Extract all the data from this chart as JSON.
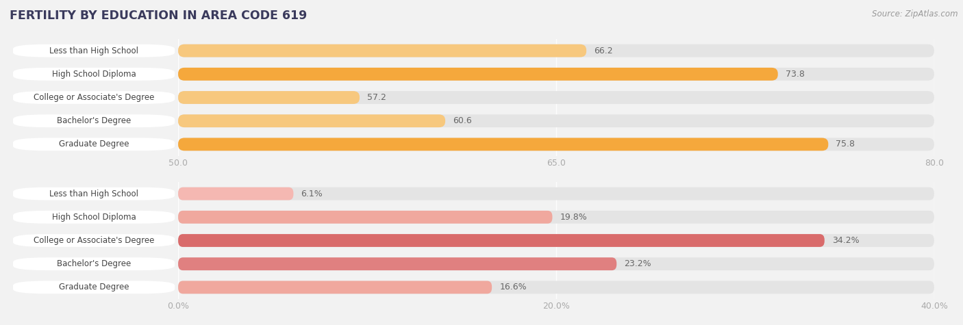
{
  "title": "FERTILITY BY EDUCATION IN AREA CODE 619",
  "source": "Source: ZipAtlas.com",
  "top_group": {
    "categories": [
      "Less than High School",
      "High School Diploma",
      "College or Associate's Degree",
      "Bachelor's Degree",
      "Graduate Degree"
    ],
    "values": [
      66.2,
      73.8,
      57.2,
      60.6,
      75.8
    ],
    "xmin": 50.0,
    "xmax": 80.0,
    "xticks": [
      50.0,
      65.0,
      80.0
    ],
    "bar_colors": [
      "#f7c87e",
      "#f5a83c",
      "#f7c87e",
      "#f7c87e",
      "#f5a83c"
    ],
    "label_suffix": ""
  },
  "bottom_group": {
    "categories": [
      "Less than High School",
      "High School Diploma",
      "College or Associate's Degree",
      "Bachelor's Degree",
      "Graduate Degree"
    ],
    "values": [
      6.1,
      19.8,
      34.2,
      23.2,
      16.6
    ],
    "xmin": 0.0,
    "xmax": 40.0,
    "xticks": [
      0.0,
      20.0,
      40.0
    ],
    "bar_colors": [
      "#f5b8b2",
      "#f0a89e",
      "#d96b6b",
      "#e08080",
      "#f0a89e"
    ],
    "label_suffix": "%"
  },
  "bg_color": "#f2f2f2",
  "bar_bg_color": "#e4e4e4",
  "bar_height": 0.55,
  "title_color": "#3a3a5c",
  "label_color": "#555555",
  "tick_color": "#aaaaaa",
  "source_color": "#999999",
  "value_color": "#666666"
}
